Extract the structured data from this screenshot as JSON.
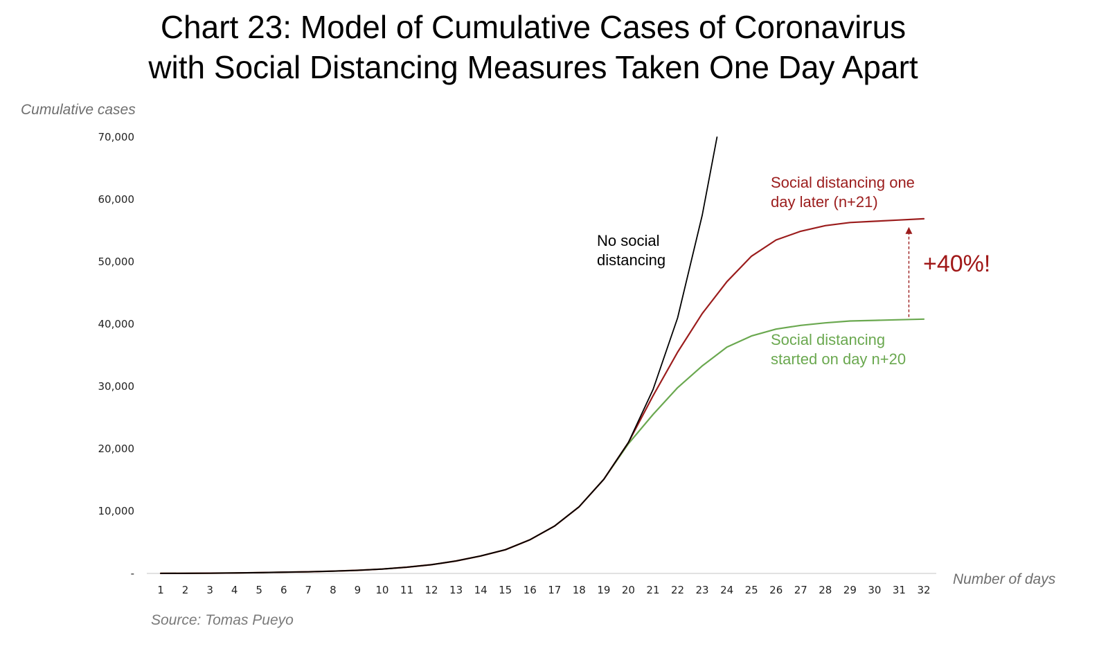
{
  "title_line1": "Chart 23: Model of Cumulative Cases of Coronavirus",
  "title_line2": "with Social Distancing Measures Taken One Day Apart",
  "source": "Source: Tomas Pueyo",
  "annotations": {
    "no_sd_line1": "No social",
    "no_sd_line2": "distancing",
    "later_line1": "Social distancing one",
    "later_line2": "day later (n+21)",
    "started_line1": "Social distancing",
    "started_line2": "started on day n+20",
    "increase": "+40%!"
  },
  "colors": {
    "no_social_distancing": "#000000",
    "one_day_later": "#9b1c1c",
    "started_day_20": "#6aa84f",
    "axis": "#d9d9d9"
  },
  "chart_data": {
    "type": "line",
    "title": "Chart 23: Model of Cumulative Cases of Coronavirus with Social Distancing Measures Taken One Day Apart",
    "xlabel": "Number of days",
    "ylabel": "Cumulative cases",
    "x": [
      1,
      2,
      3,
      4,
      5,
      6,
      7,
      8,
      9,
      10,
      11,
      12,
      13,
      14,
      15,
      16,
      17,
      18,
      19,
      20,
      21,
      22,
      23,
      24,
      25,
      26,
      27,
      28,
      29,
      30,
      31,
      32
    ],
    "xlim": [
      1,
      32
    ],
    "ylim": [
      0,
      70000
    ],
    "yticks": [
      0,
      10000,
      20000,
      30000,
      40000,
      50000,
      60000,
      70000
    ],
    "ytick_labels": [
      "-",
      "10,000",
      "20,000",
      "30,000",
      "40,000",
      "50,000",
      "60,000",
      "70,000"
    ],
    "grid": false,
    "legend": "none (lines labelled directly)",
    "series": [
      {
        "color": "#000000",
        "x": [
          1,
          2,
          3,
          4,
          5,
          6,
          7,
          8,
          9,
          10,
          11,
          12,
          13,
          14,
          15,
          16,
          17,
          18,
          19,
          20,
          21,
          22,
          23,
          23.6
        ],
        "values": [
          10,
          20,
          40,
          80,
          130,
          200,
          270,
          370,
          500,
          700,
          1000,
          1400,
          2000,
          2800,
          3800,
          5400,
          7600,
          10700,
          15100,
          21000,
          29500,
          41000,
          57500,
          70000
        ]
      },
      {
        "color": "#9b1c1c",
        "x": [
          1,
          2,
          3,
          4,
          5,
          6,
          7,
          8,
          9,
          10,
          11,
          12,
          13,
          14,
          15,
          16,
          17,
          18,
          19,
          20,
          21,
          22,
          23,
          24,
          25,
          26,
          27,
          28,
          29,
          30,
          31,
          32
        ],
        "values": [
          10,
          20,
          40,
          80,
          130,
          200,
          270,
          370,
          500,
          700,
          1000,
          1400,
          2000,
          2800,
          3800,
          5400,
          7600,
          10700,
          15100,
          21000,
          28500,
          35500,
          41700,
          46800,
          50900,
          53500,
          54900,
          55800,
          56300,
          56500,
          56700,
          56900
        ]
      },
      {
        "color": "#6aa84f",
        "x": [
          1,
          2,
          3,
          4,
          5,
          6,
          7,
          8,
          9,
          10,
          11,
          12,
          13,
          14,
          15,
          16,
          17,
          18,
          19,
          20,
          21,
          22,
          23,
          24,
          25,
          26,
          27,
          28,
          29,
          30,
          31,
          32
        ],
        "values": [
          10,
          20,
          40,
          80,
          130,
          200,
          270,
          370,
          500,
          700,
          1000,
          1400,
          2000,
          2800,
          3800,
          5400,
          7600,
          10700,
          15100,
          20800,
          25500,
          29800,
          33300,
          36300,
          38100,
          39200,
          39800,
          40200,
          40500,
          40600,
          40700,
          40800
        ]
      }
    ]
  }
}
